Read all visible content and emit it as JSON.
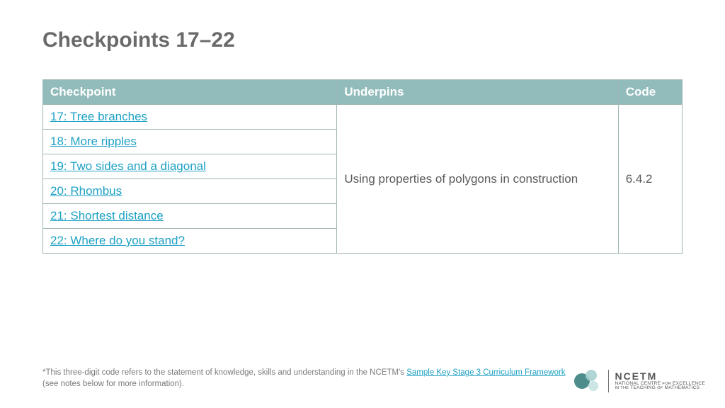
{
  "title": "Checkpoints 17–22",
  "table": {
    "headers": {
      "checkpoint": "Checkpoint",
      "underpins": "Underpins",
      "code": "Code"
    },
    "rows": [
      {
        "label": "17: Tree branches"
      },
      {
        "label": "18: More ripples"
      },
      {
        "label": "19: Two sides and a diagonal"
      },
      {
        "label": "20: Rhombus"
      },
      {
        "label": "21: Shortest distance"
      },
      {
        "label": "22: Where do you stand?"
      }
    ],
    "underpins": "Using properties of polygons in construction",
    "code": "6.4.2"
  },
  "footer": {
    "prefix": "*This three-digit code refers to the statement of knowledge, skills and understanding in the NCETM's ",
    "link": "Sample Key Stage 3 Curriculum Framework",
    "suffix": " (see notes below for more information)."
  },
  "logo": {
    "name": "NCETM",
    "subtitle_html": "NATIONAL CENTRE <span class=\"sm\">FOR</span> EXCELLENCE<br><span class=\"sm\">IN THE</span> TEACHING <span class=\"sm\">OF</span> MATHEMATICS"
  },
  "colors": {
    "header_bg": "#91bcbb",
    "border": "#9fb7b6",
    "link": "#1ea1c4",
    "title": "#6a6a6a",
    "body_text": "#5a5a5a"
  }
}
